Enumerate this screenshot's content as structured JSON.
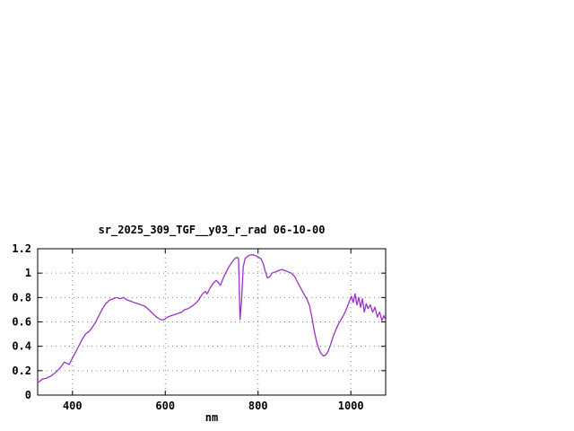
{
  "chart_data": {
    "type": "line",
    "title": "sr_2025_309_TGF__y03_r_rad 06-10-00",
    "xlabel": "nm",
    "ylabel": "",
    "xlim": [
      325,
      1075
    ],
    "ylim": [
      0,
      1.2
    ],
    "xticks": [
      400,
      600,
      800,
      1000
    ],
    "xtick_labels": [
      "400",
      "600",
      "800",
      "1000"
    ],
    "yticks": [
      0,
      0.2,
      0.4,
      0.6,
      0.8,
      1,
      1.2
    ],
    "ytick_labels": [
      "0",
      "0.2",
      "0.4",
      "0.6",
      "0.8",
      "1",
      "1.2"
    ],
    "grid": true,
    "legend": "none",
    "line_color": "#9932cc",
    "series": [
      {
        "name": "sr_2025_309_TGF__y03_r_rad",
        "x": [
          325,
          335,
          345,
          355,
          365,
          375,
          382,
          388,
          393,
          398,
          405,
          412,
          420,
          428,
          435,
          442,
          450,
          458,
          465,
          472,
          480,
          488,
          495,
          502,
          510,
          518,
          525,
          532,
          540,
          548,
          555,
          562,
          570,
          578,
          585,
          592,
          598,
          605,
          612,
          620,
          628,
          635,
          642,
          650,
          658,
          665,
          672,
          680,
          686,
          690,
          697,
          704,
          710,
          715,
          719,
          724,
          730,
          737,
          744,
          750,
          755,
          758,
          761,
          764,
          768,
          772,
          778,
          784,
          790,
          796,
          801,
          806,
          811,
          816,
          820,
          825,
          830,
          837,
          844,
          851,
          858,
          865,
          872,
          879,
          886,
          893,
          900,
          906,
          911,
          916,
          921,
          926,
          931,
          936,
          941,
          946,
          951,
          956,
          961,
          967,
          973,
          979,
          985,
          991,
          997,
          1001,
          1005,
          1009,
          1013,
          1017,
          1021,
          1025,
          1029,
          1033,
          1037,
          1042,
          1047,
          1052,
          1057,
          1062,
          1067,
          1071,
          1075
        ],
        "y": [
          0.1,
          0.13,
          0.14,
          0.16,
          0.19,
          0.23,
          0.27,
          0.26,
          0.25,
          0.29,
          0.34,
          0.39,
          0.45,
          0.5,
          0.52,
          0.55,
          0.6,
          0.66,
          0.71,
          0.75,
          0.78,
          0.79,
          0.8,
          0.79,
          0.8,
          0.78,
          0.77,
          0.76,
          0.75,
          0.74,
          0.73,
          0.71,
          0.68,
          0.65,
          0.63,
          0.615,
          0.62,
          0.64,
          0.65,
          0.66,
          0.67,
          0.68,
          0.7,
          0.71,
          0.73,
          0.75,
          0.78,
          0.83,
          0.85,
          0.83,
          0.88,
          0.92,
          0.94,
          0.92,
          0.9,
          0.95,
          1.0,
          1.05,
          1.09,
          1.12,
          1.13,
          1.12,
          0.62,
          0.75,
          1.05,
          1.12,
          1.14,
          1.15,
          1.15,
          1.14,
          1.13,
          1.12,
          1.08,
          1.01,
          0.96,
          0.97,
          1.0,
          1.01,
          1.02,
          1.03,
          1.02,
          1.01,
          1.0,
          0.97,
          0.92,
          0.87,
          0.82,
          0.78,
          0.73,
          0.64,
          0.53,
          0.44,
          0.38,
          0.34,
          0.32,
          0.33,
          0.36,
          0.41,
          0.47,
          0.53,
          0.58,
          0.62,
          0.66,
          0.71,
          0.77,
          0.81,
          0.76,
          0.83,
          0.74,
          0.8,
          0.72,
          0.79,
          0.68,
          0.75,
          0.71,
          0.74,
          0.68,
          0.72,
          0.64,
          0.68,
          0.61,
          0.65,
          0.62
        ]
      }
    ]
  }
}
